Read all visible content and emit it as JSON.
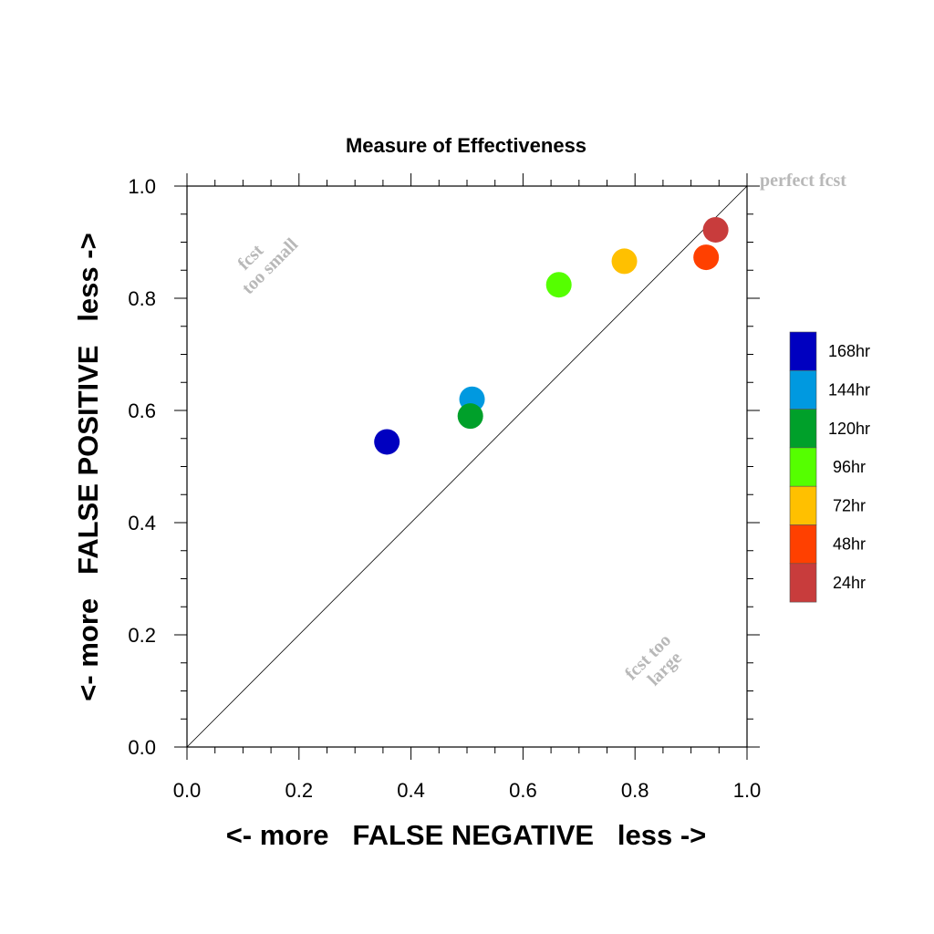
{
  "chart_data": {
    "type": "scatter",
    "title": "Measure of Effectiveness",
    "xlabel": "<- more   FALSE NEGATIVE   less ->",
    "ylabel": "<- more   FALSE POSITIVE   less ->",
    "xlim": [
      0,
      1
    ],
    "ylim": [
      0,
      1
    ],
    "xticks": [
      "0.0",
      "0.2",
      "0.4",
      "0.6",
      "0.8",
      "1.0"
    ],
    "yticks": [
      "0.0",
      "0.2",
      "0.4",
      "0.6",
      "0.8",
      "1.0"
    ],
    "grid": false,
    "diagonal_line": true,
    "legend_placement": "right",
    "annotations": {
      "perfect": "perfect fcst",
      "too_small": [
        "fcst",
        "too small"
      ],
      "too_large": [
        "fcst too",
        "large"
      ]
    },
    "series": [
      {
        "name": "168hr",
        "color": "#0000c0",
        "x": 0.357,
        "y": 0.544
      },
      {
        "name": "144hr",
        "color": "#0099e0",
        "x": 0.509,
        "y": 0.62
      },
      {
        "name": "120hr",
        "color": "#00a02a",
        "x": 0.506,
        "y": 0.59
      },
      {
        "name": "96hr",
        "color": "#55ff00",
        "x": 0.664,
        "y": 0.824
      },
      {
        "name": "72hr",
        "color": "#ffc000",
        "x": 0.781,
        "y": 0.866
      },
      {
        "name": "48hr",
        "color": "#ff4000",
        "x": 0.927,
        "y": 0.873
      },
      {
        "name": "24hr",
        "color": "#c83c3c",
        "x": 0.944,
        "y": 0.922
      }
    ]
  }
}
